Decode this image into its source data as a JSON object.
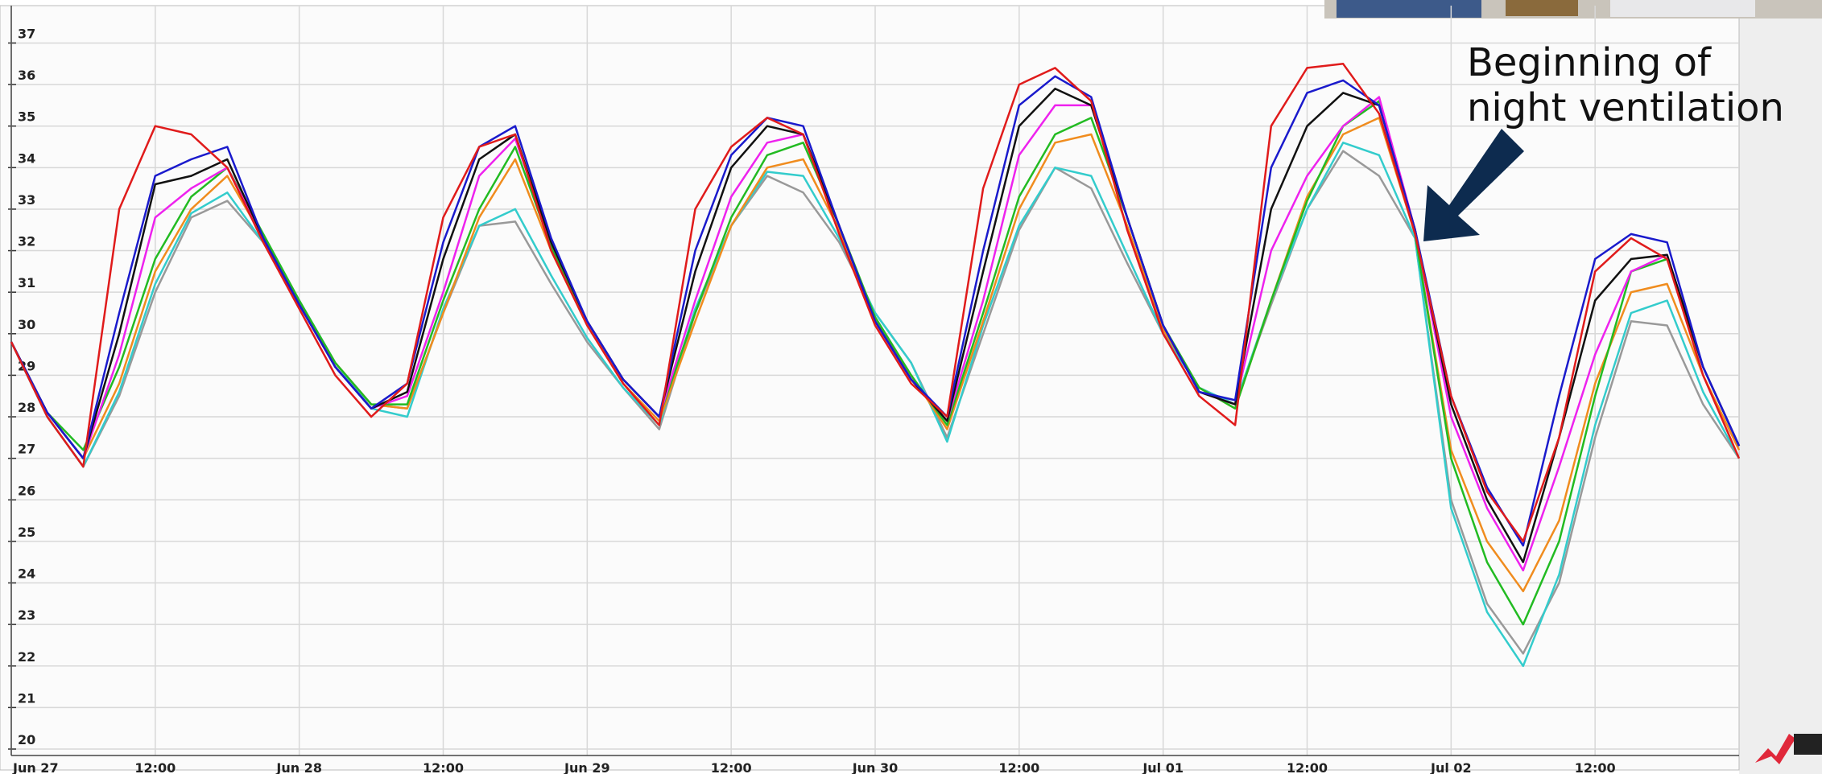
{
  "chart_data": {
    "type": "line",
    "annotation": "Beginning of night ventilation",
    "xlim": [
      0,
      144
    ],
    "ylim": [
      20,
      37.9
    ],
    "grid": true,
    "xticks": [
      {
        "value": 0,
        "label": "Jun 27"
      },
      {
        "value": 12,
        "label": "12:00"
      },
      {
        "value": 24,
        "label": "Jun 28"
      },
      {
        "value": 36,
        "label": "12:00"
      },
      {
        "value": 48,
        "label": "Jun 29"
      },
      {
        "value": 60,
        "label": "12:00"
      },
      {
        "value": 72,
        "label": "Jun 30"
      },
      {
        "value": 84,
        "label": "12:00"
      },
      {
        "value": 96,
        "label": "Jul 01"
      },
      {
        "value": 108,
        "label": "12:00"
      },
      {
        "value": 120,
        "label": "Jul 02"
      },
      {
        "value": 132,
        "label": "12:00"
      }
    ],
    "yticks": [
      20,
      21,
      22,
      23,
      24,
      25,
      26,
      27,
      28,
      29,
      30,
      31,
      32,
      33,
      34,
      35,
      36,
      37
    ],
    "x": [
      0,
      3,
      6,
      9,
      12,
      15,
      18,
      21,
      24,
      27,
      30,
      33,
      36,
      39,
      42,
      45,
      48,
      51,
      54,
      57,
      60,
      63,
      66,
      69,
      72,
      75,
      78,
      81,
      84,
      87,
      90,
      93,
      96,
      99,
      102,
      105,
      108,
      111,
      114,
      117,
      120,
      123,
      126,
      129,
      132,
      135,
      138,
      141,
      144
    ],
    "series": [
      {
        "color": "#999999",
        "values": [
          29.8,
          28.0,
          26.8,
          28.5,
          31.0,
          32.8,
          33.2,
          32.2,
          30.8,
          29.3,
          28.3,
          28.2,
          30.5,
          32.6,
          32.7,
          31.2,
          29.8,
          28.7,
          27.7,
          30.5,
          32.6,
          33.8,
          33.4,
          32.2,
          30.5,
          29.3,
          27.5,
          30.0,
          32.5,
          34.0,
          33.5,
          31.7,
          30.0,
          28.7,
          28.3,
          30.7,
          33.0,
          34.4,
          33.8,
          32.3,
          26.0,
          23.5,
          22.3,
          24.0,
          27.5,
          30.3,
          30.2,
          28.3,
          27.0
        ]
      },
      {
        "color": "#33cccc",
        "values": [
          29.8,
          28.0,
          26.8,
          28.6,
          31.2,
          32.9,
          33.4,
          32.2,
          30.8,
          29.3,
          28.2,
          28.0,
          30.6,
          32.6,
          33.0,
          31.4,
          29.9,
          28.7,
          27.8,
          30.6,
          32.6,
          33.9,
          33.8,
          32.3,
          30.5,
          29.3,
          27.4,
          30.2,
          32.6,
          34.0,
          33.8,
          31.9,
          30.0,
          28.7,
          28.3,
          30.8,
          33.0,
          34.6,
          34.3,
          32.3,
          25.8,
          23.3,
          22.0,
          24.2,
          27.8,
          30.5,
          30.8,
          28.6,
          27.0
        ]
      },
      {
        "color": "#f08c1e",
        "values": [
          29.8,
          28.1,
          27.0,
          28.8,
          31.5,
          33.0,
          33.8,
          32.3,
          30.7,
          29.3,
          28.3,
          28.2,
          30.5,
          32.8,
          34.2,
          32.0,
          30.2,
          28.8,
          27.9,
          30.3,
          32.6,
          34.0,
          34.2,
          32.5,
          30.3,
          29.0,
          27.7,
          30.3,
          33.0,
          34.6,
          34.8,
          32.6,
          30.1,
          28.7,
          28.2,
          30.8,
          33.3,
          34.8,
          35.2,
          32.4,
          27.2,
          25.0,
          23.8,
          25.5,
          28.8,
          31.0,
          31.2,
          29.0,
          27.2
        ]
      },
      {
        "color": "#22bb22",
        "values": [
          29.8,
          28.1,
          27.2,
          29.2,
          31.8,
          33.3,
          34.0,
          32.4,
          30.8,
          29.3,
          28.3,
          28.3,
          30.8,
          33.0,
          34.5,
          32.1,
          30.3,
          28.9,
          28.0,
          30.5,
          32.8,
          34.3,
          34.6,
          32.6,
          30.4,
          29.0,
          27.8,
          30.5,
          33.3,
          34.8,
          35.2,
          32.8,
          30.2,
          28.7,
          28.2,
          30.8,
          33.2,
          35.0,
          35.6,
          32.4,
          27.0,
          24.5,
          23.0,
          25.0,
          28.5,
          31.5,
          31.8,
          29.2,
          27.3
        ]
      },
      {
        "color": "#ee22ee",
        "values": [
          29.8,
          28.1,
          27.0,
          29.5,
          32.8,
          33.5,
          34.0,
          32.3,
          30.7,
          29.2,
          28.2,
          28.5,
          31.0,
          33.8,
          34.7,
          32.2,
          30.3,
          28.9,
          28.0,
          30.8,
          33.3,
          34.6,
          34.8,
          32.6,
          30.3,
          28.9,
          27.9,
          30.8,
          34.3,
          35.5,
          35.5,
          32.8,
          30.2,
          28.6,
          28.3,
          32.0,
          33.8,
          35.0,
          35.7,
          32.5,
          28.0,
          25.8,
          24.3,
          26.8,
          29.5,
          31.5,
          31.9,
          29.2,
          27.3
        ]
      },
      {
        "color": "#111111",
        "values": [
          29.8,
          28.1,
          27.0,
          30.0,
          33.6,
          33.8,
          34.2,
          32.3,
          30.7,
          29.2,
          28.2,
          28.6,
          31.8,
          34.2,
          34.8,
          32.2,
          30.3,
          28.9,
          28.0,
          31.5,
          34.0,
          35.0,
          34.8,
          32.6,
          30.3,
          28.9,
          27.9,
          31.5,
          35.0,
          35.9,
          35.5,
          32.8,
          30.2,
          28.6,
          28.3,
          33.0,
          35.0,
          35.8,
          35.5,
          32.5,
          28.3,
          26.0,
          24.5,
          27.5,
          30.8,
          31.8,
          31.9,
          29.2,
          27.3
        ]
      },
      {
        "color": "#1a1acc",
        "values": [
          29.8,
          28.1,
          27.0,
          30.5,
          33.8,
          34.2,
          34.5,
          32.3,
          30.7,
          29.2,
          28.2,
          28.8,
          32.2,
          34.5,
          35.0,
          32.3,
          30.3,
          28.9,
          28.0,
          32.0,
          34.3,
          35.2,
          35.0,
          32.6,
          30.3,
          28.9,
          28.0,
          32.0,
          35.5,
          36.2,
          35.7,
          32.8,
          30.2,
          28.6,
          28.4,
          34.0,
          35.8,
          36.1,
          35.5,
          32.5,
          28.5,
          26.3,
          24.9,
          28.5,
          31.8,
          32.4,
          32.2,
          29.2,
          27.3
        ]
      },
      {
        "color": "#e01b1b",
        "values": [
          29.8,
          28.0,
          26.8,
          33.0,
          35.0,
          34.8,
          34.0,
          32.2,
          30.6,
          29.0,
          28.0,
          28.8,
          32.8,
          34.5,
          34.8,
          32.0,
          30.2,
          28.8,
          27.8,
          33.0,
          34.5,
          35.2,
          34.8,
          32.4,
          30.2,
          28.8,
          28.0,
          33.5,
          36.0,
          36.4,
          35.6,
          32.5,
          30.0,
          28.5,
          27.8,
          35.0,
          36.4,
          36.5,
          35.3,
          32.4,
          28.5,
          26.2,
          25.0,
          27.5,
          31.5,
          32.3,
          31.8,
          29.0,
          27.0
        ]
      }
    ]
  }
}
